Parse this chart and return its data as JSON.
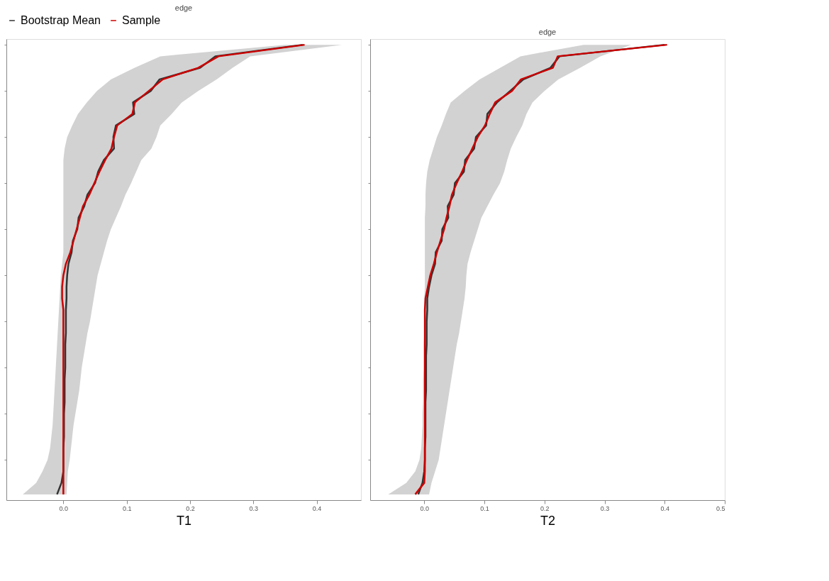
{
  "chart_data": [
    {
      "type": "line",
      "title": "edge",
      "xlabel": "T1",
      "orientation": "horizontal",
      "legend": "top",
      "tick_labels": "x",
      "categories": [
        null,
        null,
        null,
        null,
        null,
        null,
        null,
        null,
        null,
        null,
        null,
        null,
        null,
        null,
        null,
        null,
        null,
        null,
        null,
        null,
        null,
        null,
        null,
        null,
        null,
        null,
        null,
        null,
        null,
        null,
        null,
        null,
        null,
        null,
        null,
        null,
        null,
        null,
        null,
        null
      ],
      "xlim": [
        -0.09,
        0.47
      ],
      "xticks": [
        {
          "value": 0,
          "label": "0.0"
        },
        0.1,
        0.2,
        0.3,
        0.4
      ],
      "series": [
        {
          "name": "Bootstrap Mean",
          "color": "#333333",
          "values": [
            0.378,
            0.24,
            0.216,
            0.152,
            0.138,
            0.11,
            0.112,
            0.083,
            0.079,
            0.08,
            0.064,
            0.055,
            0.05,
            0.038,
            0.033,
            0.024,
            0.022,
            0.015,
            0.013,
            0.008,
            0.006,
            0.005,
            0.005,
            0.004,
            0.004,
            0.004,
            0.003,
            0.003,
            0.003,
            0.002,
            0.002,
            0.002,
            0.001,
            0.001,
            0.001,
            0.0,
            0.0,
            0.0,
            -0.003,
            -0.01
          ]
        },
        {
          "name": "Sample",
          "color": "#cc0000",
          "values": [
            0.381,
            0.245,
            0.213,
            0.157,
            0.135,
            0.113,
            0.109,
            0.085,
            0.08,
            0.076,
            0.066,
            0.057,
            0.049,
            0.041,
            0.031,
            0.026,
            0.021,
            0.016,
            0.011,
            0.004,
            0.0,
            -0.002,
            -0.002,
            0,
            0,
            0,
            0,
            0,
            0,
            0,
            0,
            0,
            0,
            0,
            0,
            0,
            0,
            0,
            0,
            0
          ],
          "lower": [
            0.35,
            0.153,
            0.112,
            0.075,
            0.053,
            0.037,
            0.023,
            0.014,
            0.006,
            0.002,
            0,
            0,
            0,
            0,
            0,
            0,
            0,
            0,
            0,
            -0.002,
            -0.004,
            -0.005,
            -0.006,
            -0.007,
            -0.008,
            -0.009,
            -0.01,
            -0.011,
            -0.012,
            -0.013,
            -0.014,
            -0.015,
            -0.016,
            -0.017,
            -0.019,
            -0.021,
            -0.025,
            -0.033,
            -0.043,
            -0.064
          ],
          "upper": [
            0.44,
            0.295,
            0.267,
            0.242,
            0.213,
            0.187,
            0.171,
            0.153,
            0.147,
            0.139,
            0.123,
            0.115,
            0.107,
            0.098,
            0.091,
            0.083,
            0.075,
            0.069,
            0.064,
            0.059,
            0.054,
            0.051,
            0.048,
            0.045,
            0.042,
            0.038,
            0.035,
            0.032,
            0.029,
            0.027,
            0.025,
            0.022,
            0.019,
            0.016,
            0.014,
            0.012,
            0.01,
            0.007,
            0.006,
            0.005
          ]
        }
      ]
    },
    {
      "type": "line",
      "title": "edge",
      "xlabel": "T2",
      "orientation": "horizontal",
      "tick_labels": "x",
      "categories": [
        null,
        null,
        null,
        null,
        null,
        null,
        null,
        null,
        null,
        null,
        null,
        null,
        null,
        null,
        null,
        null,
        null,
        null,
        null,
        null,
        null,
        null,
        null,
        null,
        null,
        null,
        null,
        null,
        null,
        null,
        null,
        null,
        null,
        null,
        null,
        null,
        null,
        null,
        null,
        null
      ],
      "xlim": [
        -0.09,
        0.5
      ],
      "xticks": [
        {
          "value": 0,
          "label": "0.0"
        },
        0.1,
        0.2,
        0.3,
        0.4,
        0.5
      ],
      "series": [
        {
          "color": "#333333",
          "values": [
            0.4,
            0.225,
            0.21,
            0.165,
            0.143,
            0.121,
            0.105,
            0.103,
            0.086,
            0.083,
            0.068,
            0.066,
            0.051,
            0.049,
            0.039,
            0.04,
            0.03,
            0.029,
            0.019,
            0.018,
            0.012,
            0.008,
            0.005,
            0.005,
            0.004,
            0.004,
            0.004,
            0.003,
            0.003,
            0.003,
            0.003,
            0.002,
            0.002,
            0.002,
            0.002,
            0.001,
            0.001,
            0.0,
            -0.003,
            -0.01
          ]
        },
        {
          "color": "#cc0000",
          "values": [
            0.404,
            0.222,
            0.214,
            0.161,
            0.146,
            0.118,
            0.109,
            0.101,
            0.089,
            0.08,
            0.071,
            0.063,
            0.054,
            0.046,
            0.042,
            0.037,
            0.033,
            0.027,
            0.021,
            0.016,
            0.01,
            0.006,
            0.002,
            0.001,
            0.001,
            0.001,
            0.001,
            0.001,
            0.001,
            0.001,
            0.001,
            0.001,
            0.001,
            0.001,
            0.001,
            0.001,
            0.001,
            0.001,
            0.0,
            -0.015
          ],
          "lower": [
            0.265,
            0.16,
            0.126,
            0.092,
            0.067,
            0.044,
            0.036,
            0.029,
            0.021,
            0.015,
            0.009,
            0.005,
            0.003,
            0.002,
            0.002,
            0.001,
            0.001,
            0.001,
            0.001,
            0.001,
            0.001,
            0.001,
            0.0,
            0.0,
            0.0,
            0.0,
            -0.001,
            -0.001,
            -0.001,
            -0.002,
            -0.002,
            -0.002,
            -0.003,
            -0.003,
            -0.004,
            -0.005,
            -0.008,
            -0.015,
            -0.03,
            -0.06
          ],
          "upper": [
            0.344,
            0.293,
            0.259,
            0.223,
            0.2,
            0.18,
            0.17,
            0.163,
            0.153,
            0.144,
            0.138,
            0.133,
            0.126,
            0.115,
            0.105,
            0.095,
            0.089,
            0.083,
            0.077,
            0.072,
            0.07,
            0.069,
            0.067,
            0.064,
            0.061,
            0.058,
            0.054,
            0.051,
            0.048,
            0.045,
            0.042,
            0.039,
            0.036,
            0.033,
            0.03,
            0.027,
            0.024,
            0.018,
            0.012,
            0.008
          ]
        }
      ]
    }
  ]
}
